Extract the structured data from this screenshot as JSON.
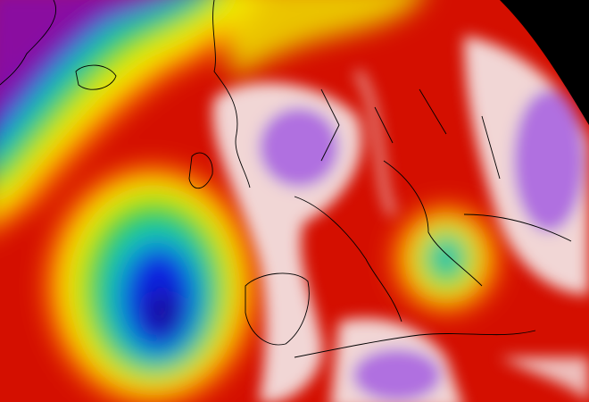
{
  "map": {
    "colors": {
      "background": "#d40f00",
      "deep_low": "#8a0aa0",
      "blue": "#1020e0",
      "cyan": "#10c0c0",
      "green": "#30d020",
      "yellow": "#f0f000",
      "orange": "#ff7a00",
      "red": "#d40f00",
      "white": "#f4ecec",
      "lavender": "#b070e0",
      "space": "#000000",
      "coastline": "#000000"
    },
    "features": [
      {
        "name": "northwest-low",
        "color": "#8a0aa0"
      },
      {
        "name": "atlantic-low",
        "color": "#1020e0"
      },
      {
        "name": "mediterranean-low",
        "color": "#10c0c0"
      },
      {
        "name": "central-europe-ridge",
        "color": "#b070e0"
      },
      {
        "name": "eastern-ridge",
        "color": "#b070e0"
      },
      {
        "name": "north-africa-ridge",
        "color": "#b070e0"
      }
    ]
  }
}
